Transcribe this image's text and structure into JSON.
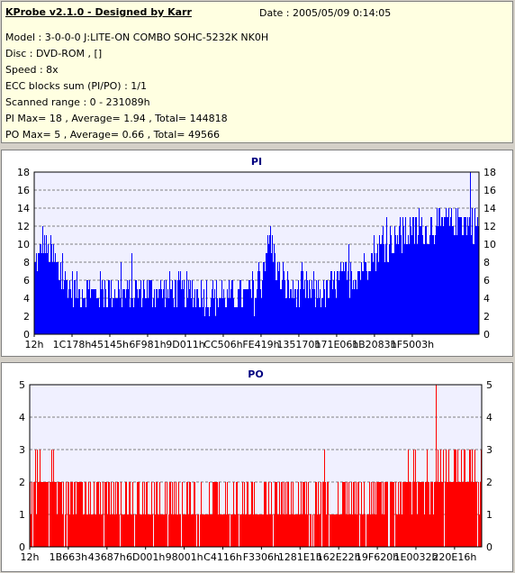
{
  "info": {
    "title": "KProbe v2.1.0 - Designed by Karr",
    "date": "Date : 2005/05/09 0:14:05",
    "model": "Model : 3-0-0-0 J:LITE-ON COMBO SOHC-5232K NK0H",
    "disc": "Disc : DVD-ROM ,  []",
    "speed": "Speed : 8x",
    "ecc": "ECC blocks sum (PI/PO) : 1/1",
    "range": "Scanned range : 0 - 231089h",
    "pi_stats": "PI Max= 18 , Average= 1.94 , Total= 144818",
    "po_stats": "PO Max= 5 , Average= 0.66 , Total= 49566"
  },
  "colors": {
    "pi": "#0000ff",
    "po": "#ff0000",
    "plot_bg": "#f0f0ff",
    "title": "#000080"
  },
  "chart_data": [
    {
      "type": "bar",
      "title": "PI",
      "ylim": [
        0,
        18
      ],
      "yticks": [
        0,
        2,
        4,
        6,
        8,
        10,
        12,
        14,
        16,
        18
      ],
      "x_ticks": [
        "12h",
        "1C178h",
        "45145h",
        "6F981h",
        "9D011h",
        "CC506h",
        "FE419h",
        "135170h",
        "171E06h",
        "1B2083h",
        "1F5003h"
      ],
      "max": 18,
      "profile": [
        [
          0,
          7.5
        ],
        [
          1,
          8
        ],
        [
          2,
          10.5
        ],
        [
          3,
          9
        ],
        [
          4,
          8.5
        ],
        [
          5,
          7
        ],
        [
          6,
          6
        ],
        [
          8,
          5
        ],
        [
          10,
          4.5
        ],
        [
          15,
          4.5
        ],
        [
          20,
          4.5
        ],
        [
          25,
          4.5
        ],
        [
          30,
          4.5
        ],
        [
          35,
          4.5
        ],
        [
          38,
          4.2
        ],
        [
          40,
          4
        ],
        [
          44,
          3.8
        ],
        [
          48,
          4
        ],
        [
          50,
          4
        ],
        [
          51,
          5
        ],
        [
          52,
          9
        ],
        [
          53,
          10
        ],
        [
          54,
          8.5
        ],
        [
          55,
          6
        ],
        [
          56,
          5
        ],
        [
          58,
          4.5
        ],
        [
          62,
          4.5
        ],
        [
          66,
          4.5
        ],
        [
          68,
          5.5
        ],
        [
          70,
          6
        ],
        [
          72,
          6.5
        ],
        [
          74,
          7.5
        ],
        [
          76,
          8.5
        ],
        [
          78,
          9.5
        ],
        [
          80,
          10
        ],
        [
          84,
          11
        ],
        [
          88,
          11.5
        ],
        [
          92,
          12
        ],
        [
          96,
          12.5
        ],
        [
          100,
          12
        ]
      ]
    },
    {
      "type": "bar",
      "title": "PO",
      "ylim": [
        0,
        5
      ],
      "yticks": [
        0,
        1,
        2,
        3,
        4,
        5
      ],
      "x_ticks": [
        "12h",
        "1B663h",
        "43687h",
        "6D001h",
        "98001h",
        "C4116h",
        "F3306h",
        "1281E1h",
        "162E22h",
        "19F620h",
        "1E0032h",
        "220E16h"
      ],
      "max": 5,
      "profile": [
        [
          0,
          2
        ],
        [
          2,
          2
        ],
        [
          5,
          2
        ],
        [
          8,
          1.5
        ],
        [
          12,
          1.4
        ],
        [
          16,
          1.3
        ],
        [
          20,
          1.3
        ],
        [
          30,
          1.3
        ],
        [
          40,
          1.3
        ],
        [
          50,
          1.3
        ],
        [
          60,
          1.3
        ],
        [
          70,
          1.4
        ],
        [
          75,
          1.5
        ],
        [
          80,
          1.6
        ],
        [
          84,
          1.8
        ],
        [
          88,
          2
        ],
        [
          92,
          2.2
        ],
        [
          96,
          2.2
        ],
        [
          100,
          2
        ]
      ]
    }
  ]
}
